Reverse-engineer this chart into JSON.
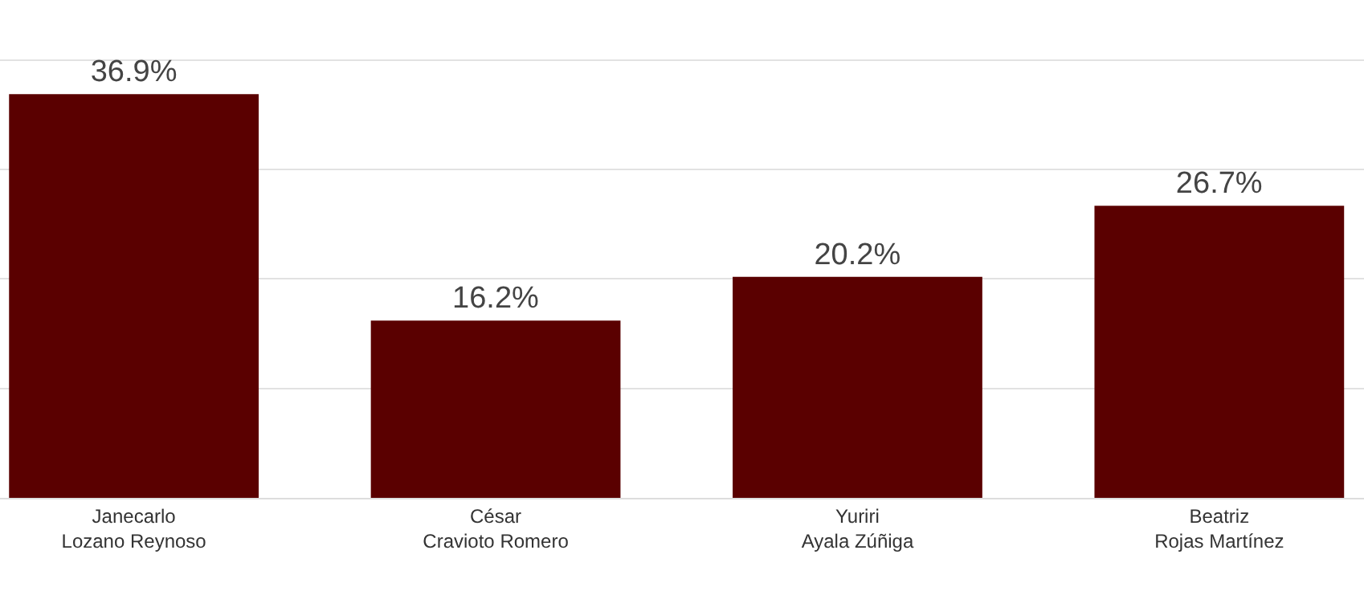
{
  "chart_data": {
    "type": "bar",
    "categories": [
      "Janecarlo\nLozano Reynoso",
      "César\nCravioto Romero",
      "Yuriri\nAyala Zúñiga",
      "Beatriz\nRojas Martínez"
    ],
    "values": [
      36.9,
      16.2,
      20.2,
      26.7
    ],
    "value_labels": [
      "36.9%",
      "16.2%",
      "20.2%",
      "26.7%"
    ],
    "color": "#5a0000",
    "ylim": [
      0,
      45.5
    ],
    "yticks": [
      {
        "value": 0,
        "label": null
      },
      {
        "value": 10,
        "label": null
      },
      {
        "value": 20,
        "label": null
      },
      {
        "value": 30,
        "label": null
      },
      {
        "value": 40,
        "label": null
      }
    ],
    "grid": "y",
    "tick_labels": "x"
  }
}
